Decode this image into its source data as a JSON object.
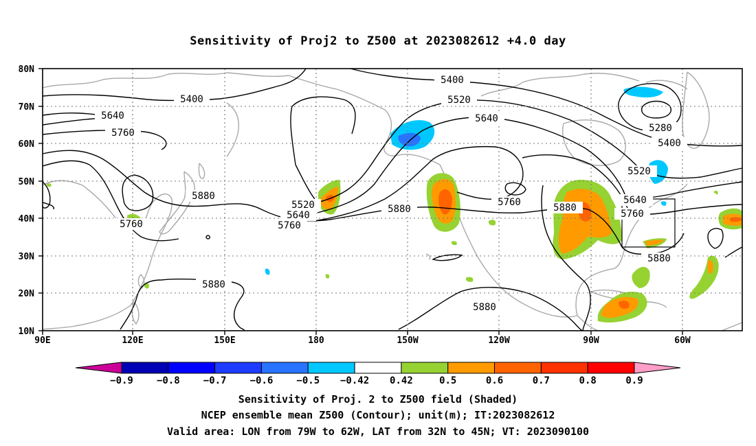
{
  "title": "Sensitivity of Proj2 to Z500 at 2023082612 +4.0 day",
  "map": {
    "lat_labels": [
      "80N",
      "70N",
      "60N",
      "50N",
      "40N",
      "30N",
      "20N",
      "10N"
    ],
    "lon_labels": [
      "90E",
      "120E",
      "150E",
      "180",
      "150W",
      "120W",
      "90W",
      "60W"
    ],
    "lon_range": [
      90,
      310
    ],
    "lat_range": [
      10,
      80
    ],
    "box": {
      "lon": [
        281,
        298
      ],
      "lat": [
        32,
        45
      ]
    }
  },
  "contour_labels": {
    "c5400_a": "5400",
    "c5400_b": "5400",
    "c5400_c": "5400",
    "c5520_a": "5520",
    "c5520_b": "5520",
    "c5520_c": "5520",
    "c5640_a": "5640",
    "c5640_b": "5640",
    "c5640_c": "5640",
    "c5640_d": "5640",
    "c5760_a": "5760",
    "c5760_b": "5760",
    "c5760_c": "5760",
    "c5760_d": "5760",
    "c5760_e": "5760",
    "c5880_a": "5880",
    "c5880_b": "5880",
    "c5880_c": "5880",
    "c5880_d": "5880",
    "c5880_e": "5880",
    "c5880_f": "5880",
    "c5280": "5280"
  },
  "colorbar": {
    "colors": [
      "#cc0099",
      "#0000b4",
      "#0000ff",
      "#1e3cff",
      "#2873ff",
      "#00c8ff",
      "#ffffff",
      "#96d232",
      "#ff9b00",
      "#ff6400",
      "#ff3200",
      "#ff0000",
      "#ff9ec8"
    ],
    "labels": [
      "-0.9",
      "-0.8",
      "-0.7",
      "-0.6",
      "-0.5",
      "-0.42",
      "0.42",
      "0.5",
      "0.6",
      "0.7",
      "0.8",
      "0.9"
    ]
  },
  "caption": {
    "line1": "Sensitivity of Proj. 2 to Z500 field (Shaded)",
    "line2": "NCEP ensemble mean Z500 (Contour); unit(m); IT:2023082612",
    "line3": "Valid area: LON from 79W to 62W, LAT from 32N to 45N; VT: 2023090100"
  }
}
